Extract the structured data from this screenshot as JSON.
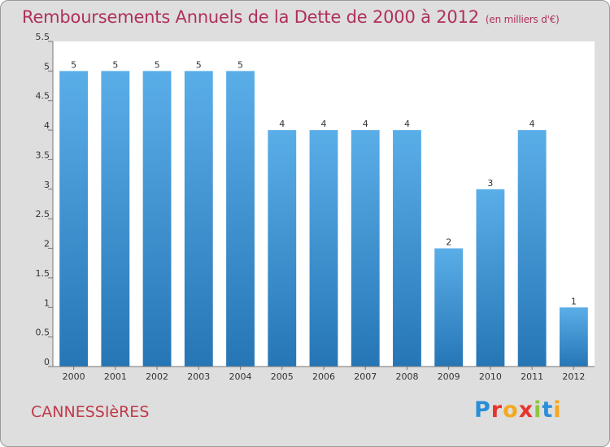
{
  "header": {
    "title": "Remboursements Annuels de la Dette de 2000 à 2012",
    "unit": "(en milliers d'€)"
  },
  "footer": {
    "commune": "CANNESSIèRES",
    "logo_letters": [
      "P",
      "r",
      "o",
      "x",
      "i",
      "t",
      "i"
    ]
  },
  "chart_data": {
    "type": "bar",
    "title": "Remboursements Annuels de la Dette de 2000 à 2012",
    "subtitle": "(en milliers d'€)",
    "categories": [
      "2000",
      "2001",
      "2002",
      "2003",
      "2004",
      "2005",
      "2006",
      "2007",
      "2008",
      "2009",
      "2010",
      "2011",
      "2012"
    ],
    "values": [
      5,
      5,
      5,
      5,
      5,
      4,
      4,
      4,
      4,
      2,
      3,
      4,
      1
    ],
    "data_labels": [
      "5",
      "5",
      "5",
      "5",
      "5",
      "4",
      "4",
      "4",
      "4",
      "2",
      "3",
      "4",
      "1"
    ],
    "y_ticks": [
      0,
      0.5,
      1,
      1.5,
      2,
      2.5,
      3,
      3.5,
      4,
      4.5,
      5,
      5.5
    ],
    "y_tick_labels": [
      "0",
      "0.5",
      "1",
      "1.5",
      "2",
      "2.5",
      "3",
      "3.5",
      "4",
      "4.5",
      "5",
      "5.5"
    ],
    "ylim": [
      0,
      5.5
    ],
    "xlabel": "",
    "ylabel": "",
    "grid": false,
    "colors": {
      "bar_light": "#5aaee8",
      "bar_dark": "#2676b6",
      "plot_bg": "#ffffff",
      "axis": "#777777"
    }
  }
}
